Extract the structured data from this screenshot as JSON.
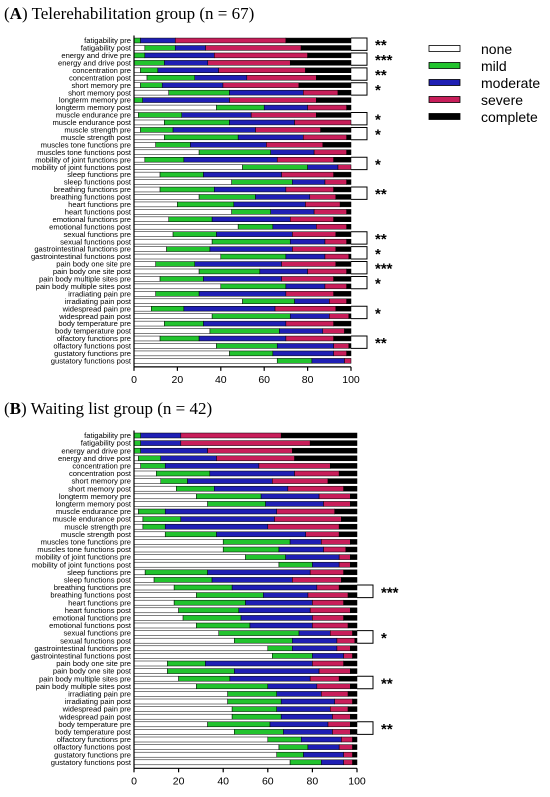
{
  "colors": {
    "none": "#ffffff",
    "mild": "#22c32e",
    "moderate": "#1f1fb4",
    "severe": "#c81e5a",
    "complete": "#000000"
  },
  "legend": {
    "items": [
      "none",
      "mild",
      "moderate",
      "severe",
      "complete"
    ]
  },
  "chart_data": [
    {
      "type": "bar",
      "orientation": "horizontal-stacked-100",
      "title_letter": "A",
      "title_rest": " Telerehabilitation group (n = 67)",
      "xlim": [
        0,
        100
      ],
      "xticks": [
        "0",
        "20",
        "40",
        "60",
        "80",
        "100"
      ],
      "stack_order": [
        "none",
        "mild",
        "moderate",
        "severe",
        "complete"
      ],
      "categories": [
        "fatigability pre",
        "fatigability post",
        "energy and drive pre",
        "energy and drive post",
        "concentration pre",
        "concentration post",
        "short memory pre",
        "short memory post",
        "longterm memory pre",
        "longterm memory post",
        "muscle endurance pre",
        "muscle endurance post",
        "muscle strength pre",
        "muscle strength post",
        "muscles tone functions pre",
        "muscles tone functions post",
        "mobility of joint functions pre",
        "mobility of joint functions post",
        "sleep functions pre",
        "sleep functions post",
        "breathing functions pre",
        "breathing functions post",
        "heart functions pre",
        "heart functions post",
        "emotional functions pre",
        "emotional functions post",
        "sexual functions pre",
        "sexual functions post",
        "gastrointestinal functions pre",
        "gastrointestinal functions post",
        "pain body one site pre",
        "pain body one site post",
        "pain body multiple sites pre",
        "pain body multiple sites post",
        "irradiating pain pre",
        "irradiating pain post",
        "widespread pain pre",
        "widespread pain post",
        "body temperature pre",
        "body temperature post",
        "olfactory functions pre",
        "olfactory functions post",
        "gustatory functions pre",
        "gustatory functions post"
      ],
      "series": [
        {
          "name": "none",
          "values": [
            0,
            5,
            0,
            0,
            3,
            6,
            3,
            16,
            0,
            38,
            2,
            14,
            3,
            14,
            10,
            30,
            5,
            50,
            12,
            45,
            12,
            30,
            20,
            45,
            16,
            48,
            18,
            36,
            15,
            40,
            10,
            30,
            12,
            40,
            10,
            50,
            8,
            36,
            14,
            35,
            12,
            38,
            44,
            66
          ]
        },
        {
          "name": "mild",
          "values": [
            3,
            14,
            5,
            14,
            8,
            22,
            10,
            28,
            4,
            22,
            20,
            30,
            15,
            34,
            16,
            33,
            18,
            30,
            20,
            28,
            25,
            26,
            26,
            18,
            20,
            16,
            20,
            36,
            20,
            30,
            18,
            28,
            20,
            30,
            20,
            24,
            15,
            36,
            18,
            32,
            18,
            28,
            20,
            16
          ]
        },
        {
          "name": "moderate",
          "values": [
            16,
            14,
            32,
            20,
            28,
            24,
            28,
            34,
            40,
            20,
            32,
            30,
            38,
            30,
            35,
            20,
            43,
            14,
            36,
            15,
            33,
            25,
            33,
            20,
            36,
            20,
            35,
            16,
            38,
            18,
            40,
            22,
            36,
            18,
            40,
            16,
            42,
            18,
            38,
            20,
            40,
            26,
            28,
            15
          ]
        },
        {
          "name": "severe",
          "values": [
            51,
            44,
            43,
            38,
            40,
            32,
            35,
            16,
            40,
            18,
            30,
            26,
            30,
            20,
            26,
            15,
            26,
            6,
            24,
            10,
            22,
            12,
            16,
            15,
            20,
            14,
            20,
            10,
            20,
            11,
            25,
            18,
            24,
            10,
            22,
            8,
            28,
            9,
            22,
            10,
            22,
            7,
            6,
            3
          ]
        },
        {
          "name": "complete",
          "values": [
            30,
            23,
            20,
            28,
            21,
            16,
            24,
            6,
            16,
            2,
            16,
            0,
            14,
            2,
            13,
            2,
            8,
            0,
            8,
            2,
            8,
            7,
            5,
            2,
            8,
            2,
            7,
            2,
            7,
            1,
            7,
            2,
            8,
            2,
            8,
            2,
            7,
            1,
            8,
            3,
            8,
            1,
            2,
            0
          ]
        }
      ],
      "significance": [
        {
          "pair": [
            0,
            1
          ],
          "label": "**"
        },
        {
          "pair": [
            2,
            3
          ],
          "label": "***"
        },
        {
          "pair": [
            4,
            5
          ],
          "label": "**"
        },
        {
          "pair": [
            6,
            7
          ],
          "label": "*"
        },
        {
          "pair": [
            10,
            11
          ],
          "label": "*"
        },
        {
          "pair": [
            12,
            13
          ],
          "label": "*"
        },
        {
          "pair": [
            16,
            17
          ],
          "label": "*"
        },
        {
          "pair": [
            20,
            21
          ],
          "label": "**"
        },
        {
          "pair": [
            26,
            27
          ],
          "label": "**"
        },
        {
          "pair": [
            28,
            29
          ],
          "label": "*"
        },
        {
          "pair": [
            30,
            31
          ],
          "label": "***"
        },
        {
          "pair": [
            32,
            33
          ],
          "label": "*"
        },
        {
          "pair": [
            36,
            37
          ],
          "label": "*"
        },
        {
          "pair": [
            40,
            41
          ],
          "label": "**"
        }
      ]
    },
    {
      "type": "bar",
      "orientation": "horizontal-stacked-100",
      "title_letter": "B",
      "title_rest": " Waiting list group (n = 42)",
      "xlim": [
        0,
        100
      ],
      "xticks": [
        "0",
        "20",
        "40",
        "60",
        "80",
        "100"
      ],
      "stack_order": [
        "none",
        "mild",
        "moderate",
        "severe",
        "complete"
      ],
      "categories": [
        "fatigability pre",
        "fatigability post",
        "energy and drive pre",
        "energy and drive post",
        "concentration pre",
        "concentration post",
        "short memory pre",
        "short memory post",
        "longterm memory pre",
        "longterm memory post",
        "muscle endurance pre",
        "muscle endurance post",
        "muscle strength pre",
        "muscle strength post",
        "muscles tone functions pre",
        "muscles tone functions post",
        "mobility of joint functions pre",
        "mobility of joint functions post",
        "sleep functions pre",
        "sleep functions post",
        "breathing functions pre",
        "breathing functions post",
        "heart functions pre",
        "heart functions post",
        "emotional functions pre",
        "emotional functions post",
        "sexual functions pre",
        "sexual functions post",
        "gastrointestinal functions pre",
        "gastrointestinal functions post",
        "pain body one site pre",
        "pain body one site post",
        "pain body multiple sites pre",
        "pain body multiple sites post",
        "irradiating pain pre",
        "irradiating pain post",
        "widespread pain pre",
        "widespread pain post",
        "body temperature pre",
        "body temperature post",
        "olfactory functions pre",
        "olfactory functions post",
        "gustatory functions pre",
        "gustatory functions post"
      ],
      "series": [
        {
          "name": "none",
          "values": [
            0,
            0,
            0,
            2,
            3,
            10,
            12,
            19,
            28,
            33,
            2,
            4,
            4,
            14,
            40,
            40,
            50,
            65,
            5,
            9,
            18,
            28,
            18,
            20,
            22,
            28,
            38,
            45,
            60,
            62,
            15,
            15,
            20,
            28,
            42,
            42,
            44,
            44,
            33,
            45,
            60,
            65,
            64,
            70
          ]
        },
        {
          "name": "mild",
          "values": [
            3,
            3,
            3,
            10,
            11,
            24,
            12,
            17,
            29,
            26,
            12,
            17,
            10,
            23,
            30,
            25,
            18,
            15,
            28,
            26,
            26,
            30,
            32,
            27,
            26,
            24,
            36,
            26,
            11,
            18,
            17,
            30,
            23,
            32,
            22,
            24,
            20,
            22,
            28,
            22,
            15,
            13,
            12,
            14
          ]
        },
        {
          "name": "moderate",
          "values": [
            18,
            18,
            30,
            25,
            42,
            38,
            38,
            33,
            26,
            26,
            50,
            42,
            46,
            40,
            14,
            20,
            24,
            12,
            46,
            36,
            38,
            20,
            30,
            32,
            32,
            28,
            14,
            20,
            20,
            14,
            48,
            38,
            36,
            22,
            20,
            24,
            24,
            23,
            26,
            22,
            18,
            14,
            18,
            10
          ]
        },
        {
          "name": "severe",
          "values": [
            45,
            58,
            38,
            35,
            32,
            20,
            25,
            25,
            14,
            12,
            26,
            30,
            32,
            15,
            13,
            10,
            5,
            5,
            15,
            22,
            10,
            18,
            14,
            18,
            14,
            16,
            10,
            8,
            6,
            4,
            14,
            14,
            13,
            15,
            12,
            8,
            8,
            8,
            10,
            8,
            5,
            6,
            4,
            4
          ]
        },
        {
          "name": "complete",
          "values": [
            34,
            21,
            29,
            28,
            12,
            8,
            13,
            6,
            3,
            3,
            10,
            7,
            8,
            8,
            3,
            5,
            3,
            3,
            6,
            7,
            8,
            4,
            6,
            3,
            6,
            4,
            2,
            1,
            3,
            2,
            6,
            3,
            8,
            3,
            4,
            2,
            4,
            3,
            3,
            3,
            2,
            2,
            2,
            2
          ]
        }
      ],
      "significance": [
        {
          "pair": [
            20,
            21
          ],
          "label": "***"
        },
        {
          "pair": [
            26,
            27
          ],
          "label": "*"
        },
        {
          "pair": [
            32,
            33
          ],
          "label": "**"
        },
        {
          "pair": [
            38,
            39
          ],
          "label": "**"
        }
      ]
    }
  ]
}
